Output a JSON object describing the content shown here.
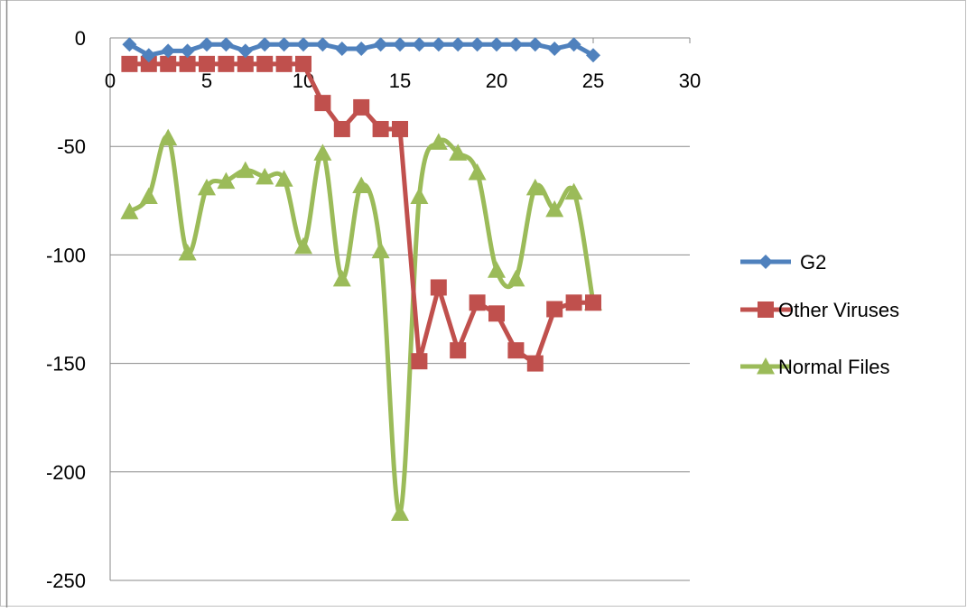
{
  "chart_data": {
    "type": "line",
    "title": "",
    "xlabel": "",
    "ylabel": "",
    "xlim": [
      0,
      30
    ],
    "ylim": [
      -250,
      0
    ],
    "x_ticks": [
      "0",
      "5",
      "10",
      "15",
      "20",
      "25",
      "30"
    ],
    "y_ticks": [
      "0",
      "-50",
      "-100",
      "-150",
      "-200",
      "-250"
    ],
    "grid": "horizontal",
    "legend_position": "right",
    "x": [
      1,
      2,
      3,
      4,
      5,
      6,
      7,
      8,
      9,
      10,
      11,
      12,
      13,
      14,
      15,
      16,
      17,
      18,
      19,
      20,
      21,
      22,
      23,
      24,
      25
    ],
    "series": [
      {
        "name": "G2",
        "color": "#4F81BD",
        "marker": "diamond",
        "smooth": false,
        "values": [
          -3,
          -8,
          -6,
          -6,
          -3,
          -3,
          -6,
          -3,
          -3,
          -3,
          -3,
          -5,
          -5,
          -3,
          -3,
          -3,
          -3,
          -3,
          -3,
          -3,
          -3,
          -3,
          -5,
          -3,
          -8
        ]
      },
      {
        "name": "Other Viruses",
        "color": "#C0504D",
        "marker": "square",
        "smooth": false,
        "values": [
          -12,
          -12,
          -12,
          -12,
          -12,
          -12,
          -12,
          -12,
          -12,
          -12,
          -30,
          -42,
          -32,
          -42,
          -42,
          -149,
          -115,
          -144,
          -122,
          -127,
          -144,
          -150,
          -125,
          -122,
          -122
        ]
      },
      {
        "name": "Normal Files",
        "color": "#9BBB59",
        "marker": "triangle",
        "smooth": true,
        "values": [
          -80,
          -73,
          -46,
          -99,
          -69,
          -66,
          -61,
          -64,
          -65,
          -96,
          -53,
          -111,
          -68,
          -98,
          -219,
          -73,
          -48,
          -53,
          -62,
          -107,
          -111,
          -69,
          -79,
          -71,
          -122
        ]
      }
    ]
  }
}
